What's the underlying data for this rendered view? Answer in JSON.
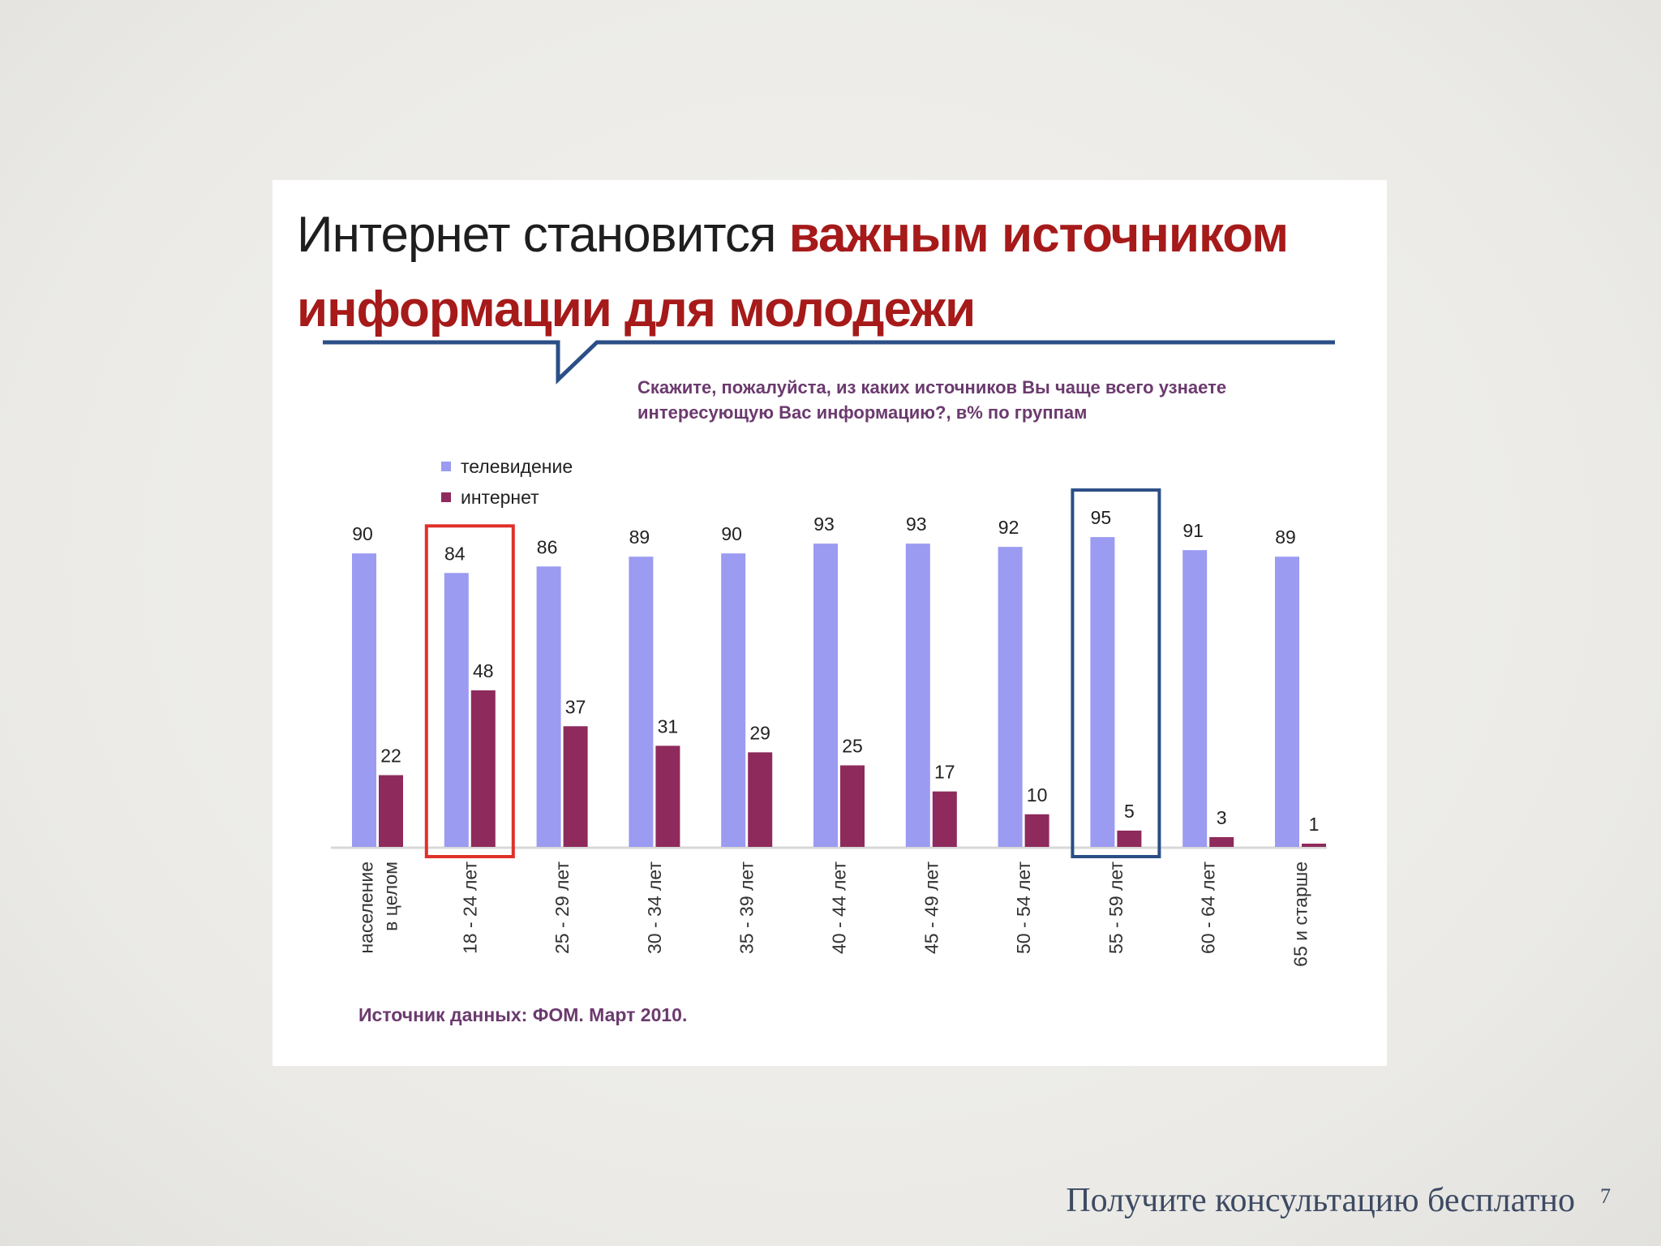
{
  "slide": {
    "footer_text": "Получите консультацию бесплатно",
    "page_number": "7"
  },
  "chart_data": {
    "type": "bar",
    "title_plain": "Интернет становится ",
    "title_highlight": "важным источником информации для молодежи",
    "subtitle": "Скажите, пожалуйста, из каких источников Вы чаще всего узнаете интересующую Вас информацию?, в% по группам",
    "source": "Источник данных: ФОМ. Март 2010.",
    "categories": [
      "население в целом",
      "18 - 24 лет",
      "25 - 29 лет",
      "30 - 34 лет",
      "35 - 39 лет",
      "40 - 44 лет",
      "45 - 49 лет",
      "50 - 54 лет",
      "55 - 59 лет",
      "60 - 64 лет",
      "65 и старше"
    ],
    "series": [
      {
        "name": "телевидение",
        "color": "#9b9bf2",
        "values": [
          90,
          84,
          86,
          89,
          90,
          93,
          93,
          92,
          95,
          91,
          89
        ]
      },
      {
        "name": "интернет",
        "color": "#8e2a5c",
        "values": [
          22,
          48,
          37,
          31,
          29,
          25,
          17,
          10,
          5,
          3,
          1
        ]
      }
    ],
    "ylim": [
      0,
      100
    ],
    "highlighted_groups": [
      {
        "category": "18 - 24 лет",
        "color": "#e0302a"
      },
      {
        "category": "55 - 59 лет",
        "color": "#2b4e86"
      }
    ],
    "accent_line_color": "#2b4e86"
  }
}
